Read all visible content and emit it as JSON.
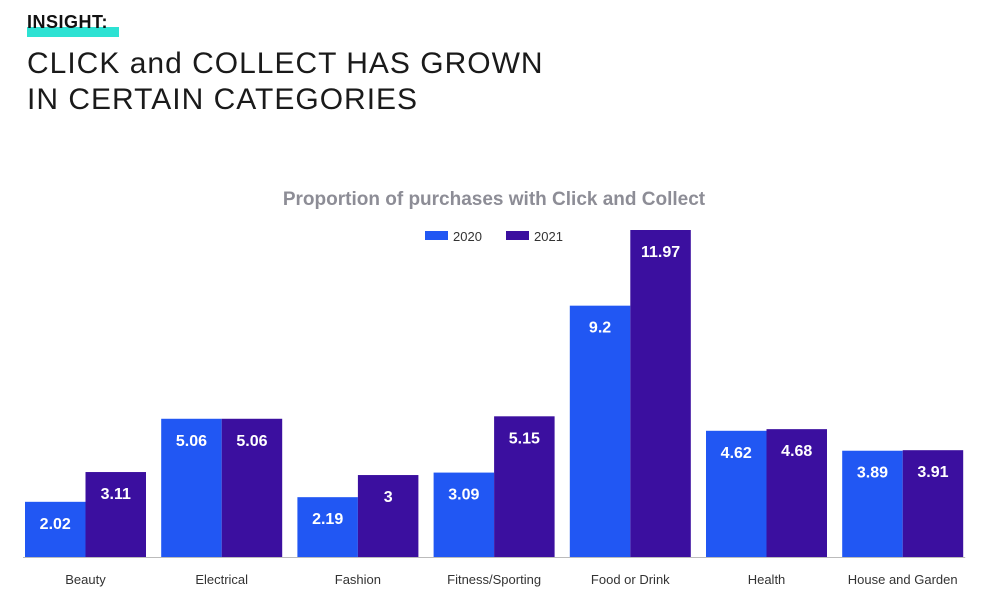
{
  "header": {
    "eyebrow": "INSIGHT:",
    "headline_lines": [
      "CLICK and COLLECT HAS GROWN",
      "IN CERTAIN CATEGORIES"
    ]
  },
  "colors": {
    "highlight": "#2de2d3",
    "series_2020": "#2157f3",
    "series_2021": "#3b0f9f",
    "axis": "#bbbbbb"
  },
  "chart_data": {
    "type": "bar",
    "title": "Proportion of purchases with Click and Collect",
    "categories": [
      "Beauty",
      "Electrical",
      "Fashion",
      "Fitness/Sporting",
      "Food or Drink",
      "Health",
      "House and Garden"
    ],
    "series": [
      {
        "name": "2020",
        "values": [
          2.02,
          5.06,
          2.19,
          3.09,
          9.2,
          4.62,
          3.89
        ],
        "labels": [
          "2.02",
          "5.06",
          "2.19",
          "3.09",
          "9.2",
          "4.62",
          "3.89"
        ]
      },
      {
        "name": "2021",
        "values": [
          3.11,
          5.06,
          3,
          5.15,
          11.97,
          4.68,
          3.91
        ],
        "labels": [
          "3.11",
          "5.06",
          "3",
          "5.15",
          "11.97",
          "4.68",
          "3.91"
        ]
      }
    ],
    "xlabel": "",
    "ylabel": "",
    "ylim": [
      0,
      12
    ],
    "grid": false,
    "legend": "top-center"
  }
}
